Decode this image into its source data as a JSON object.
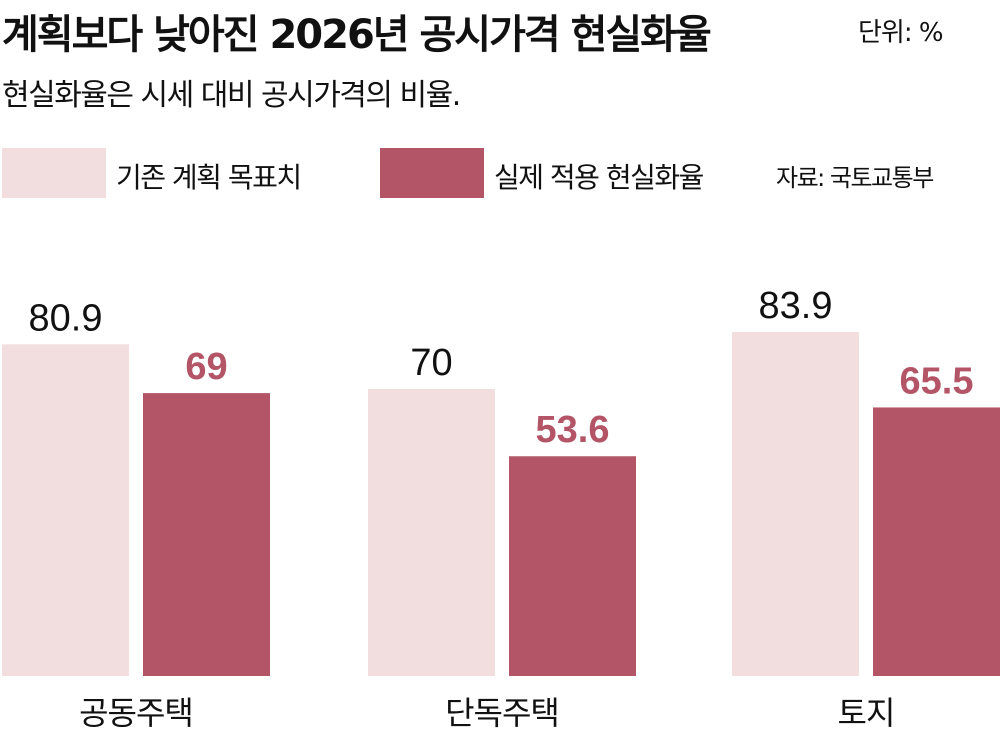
{
  "title": "계획보다 낮아진 2026년 공시가격 현실화율",
  "unit_label": "단위: %",
  "subtitle": "현실화율은 시세 대비 공시가격의 비율.",
  "source": "자료: 국토교통부",
  "colors": {
    "planned": "#f2dddf",
    "actual": "#b35567",
    "actual_label": "#b35567",
    "text": "#111111"
  },
  "chart_data": {
    "type": "bar",
    "categories": [
      "공동주택",
      "단독주택",
      "토지"
    ],
    "series": [
      {
        "name": "기존 계획 목표치",
        "values": [
          80.9,
          70,
          83.9
        ]
      },
      {
        "name": "실제 적용 현실화율",
        "values": [
          69,
          53.6,
          65.5
        ]
      }
    ],
    "value_labels": [
      [
        "80.9",
        "70",
        "83.9"
      ],
      [
        "69",
        "53.6",
        "65.5"
      ]
    ],
    "ylim": [
      0,
      100
    ],
    "grid": false,
    "legend_position": "top-left"
  }
}
